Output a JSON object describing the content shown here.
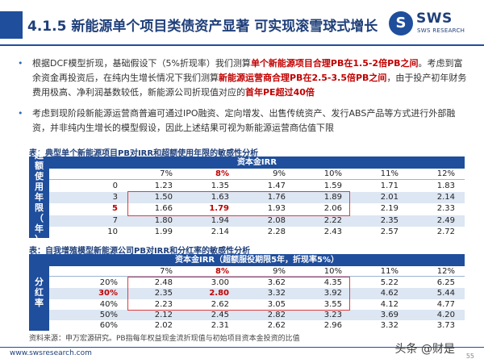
{
  "header": {
    "title": "4.1.5 新能源单个项目类债资产显著 可实现滚雪球式增长",
    "logo_mark": "S",
    "logo_text": "SWS",
    "logo_sub": "SWS RESEARCH"
  },
  "bullets": [
    {
      "parts": [
        {
          "t": "根据DCF模型折现，基础假设下（5%折现率）我们测算",
          "hl": false
        },
        {
          "t": "单个新能源项目合理PB在1.5-2倍PB之间",
          "hl": true
        },
        {
          "t": "。考虑到富余资金再投资后，在纯内生增长情况下我们测算",
          "hl": false
        },
        {
          "t": "新能源运营商合理PB在2.5-3.5倍PB之间",
          "hl": true
        },
        {
          "t": "，由于投产初年财务费用极高、净利润基数较低，新能源公司折现值对应的",
          "hl": false
        },
        {
          "t": "首年PE超过40倍",
          "hl": true
        }
      ]
    },
    {
      "parts": [
        {
          "t": "考虑到现阶段新能源运营商普遍可通过IPO融资、定向增发、出售传统资产、发行ABS产品等方式进行外部融资，并非纯内生增长的模型假设，因此上述结果可视为新能源运营商估值下限",
          "hl": false
        }
      ]
    }
  ],
  "table1": {
    "caption": "表：典型单个新能源项目PB对IRR和超额使用年限的敏感性分析",
    "side_label": "超额使用年限（年）",
    "section_title": "资本金IRR",
    "columns": [
      "7%",
      "8%",
      "9%",
      "10%",
      "11%",
      "12%"
    ],
    "highlight_col": 1,
    "rows": [
      {
        "label": "0",
        "values": [
          "1.23",
          "1.35",
          "1.47",
          "1.59",
          "1.71",
          "1.83"
        ]
      },
      {
        "label": "3",
        "values": [
          "1.50",
          "1.63",
          "1.76",
          "1.89",
          "2.01",
          "2.14"
        ]
      },
      {
        "label": "5",
        "values": [
          "1.66",
          "1.79",
          "1.93",
          "2.06",
          "2.19",
          "2.33"
        ],
        "highlight": true
      },
      {
        "label": "7",
        "values": [
          "1.80",
          "1.94",
          "2.08",
          "2.22",
          "2.35",
          "2.49"
        ]
      },
      {
        "label": "10",
        "values": [
          "1.99",
          "2.14",
          "2.28",
          "2.43",
          "2.57",
          "2.72"
        ]
      }
    ]
  },
  "table2": {
    "caption": "表：自我增殖模型新能源公司PB对IRR和分红率的敏感性分析",
    "side_label": "分红率",
    "section_title": "资本金IRR（超额服役期限5年，折现率5%）",
    "columns": [
      "7%",
      "8%",
      "9%",
      "10%",
      "11%",
      "12%"
    ],
    "highlight_col": 1,
    "rows": [
      {
        "label": "20%",
        "values": [
          "2.48",
          "3.00",
          "3.62",
          "4.35",
          "5.22",
          "6.25"
        ]
      },
      {
        "label": "30%",
        "values": [
          "2.35",
          "2.80",
          "3.32",
          "3.92",
          "4.62",
          "5.44"
        ],
        "highlight": true
      },
      {
        "label": "40%",
        "values": [
          "2.23",
          "2.62",
          "3.05",
          "3.55",
          "4.12",
          "4.77"
        ]
      },
      {
        "label": "50%",
        "values": [
          "2.12",
          "2.45",
          "2.82",
          "3.23",
          "3.69",
          "4.20"
        ]
      },
      {
        "label": "60%",
        "values": [
          "2.02",
          "2.31",
          "2.62",
          "2.96",
          "3.32",
          "3.73"
        ]
      }
    ]
  },
  "footer": {
    "source": "资料来源：申万宏源研究。PB指每年权益现金流折现值与初始项目资本金投资的比值",
    "url": "www.swsresearch.com",
    "watermark": "头条 @财是",
    "page": "55"
  },
  "colors": {
    "brand": "#1f4e9c",
    "highlight": "#c00000",
    "alt_row": "#dde6f3"
  }
}
